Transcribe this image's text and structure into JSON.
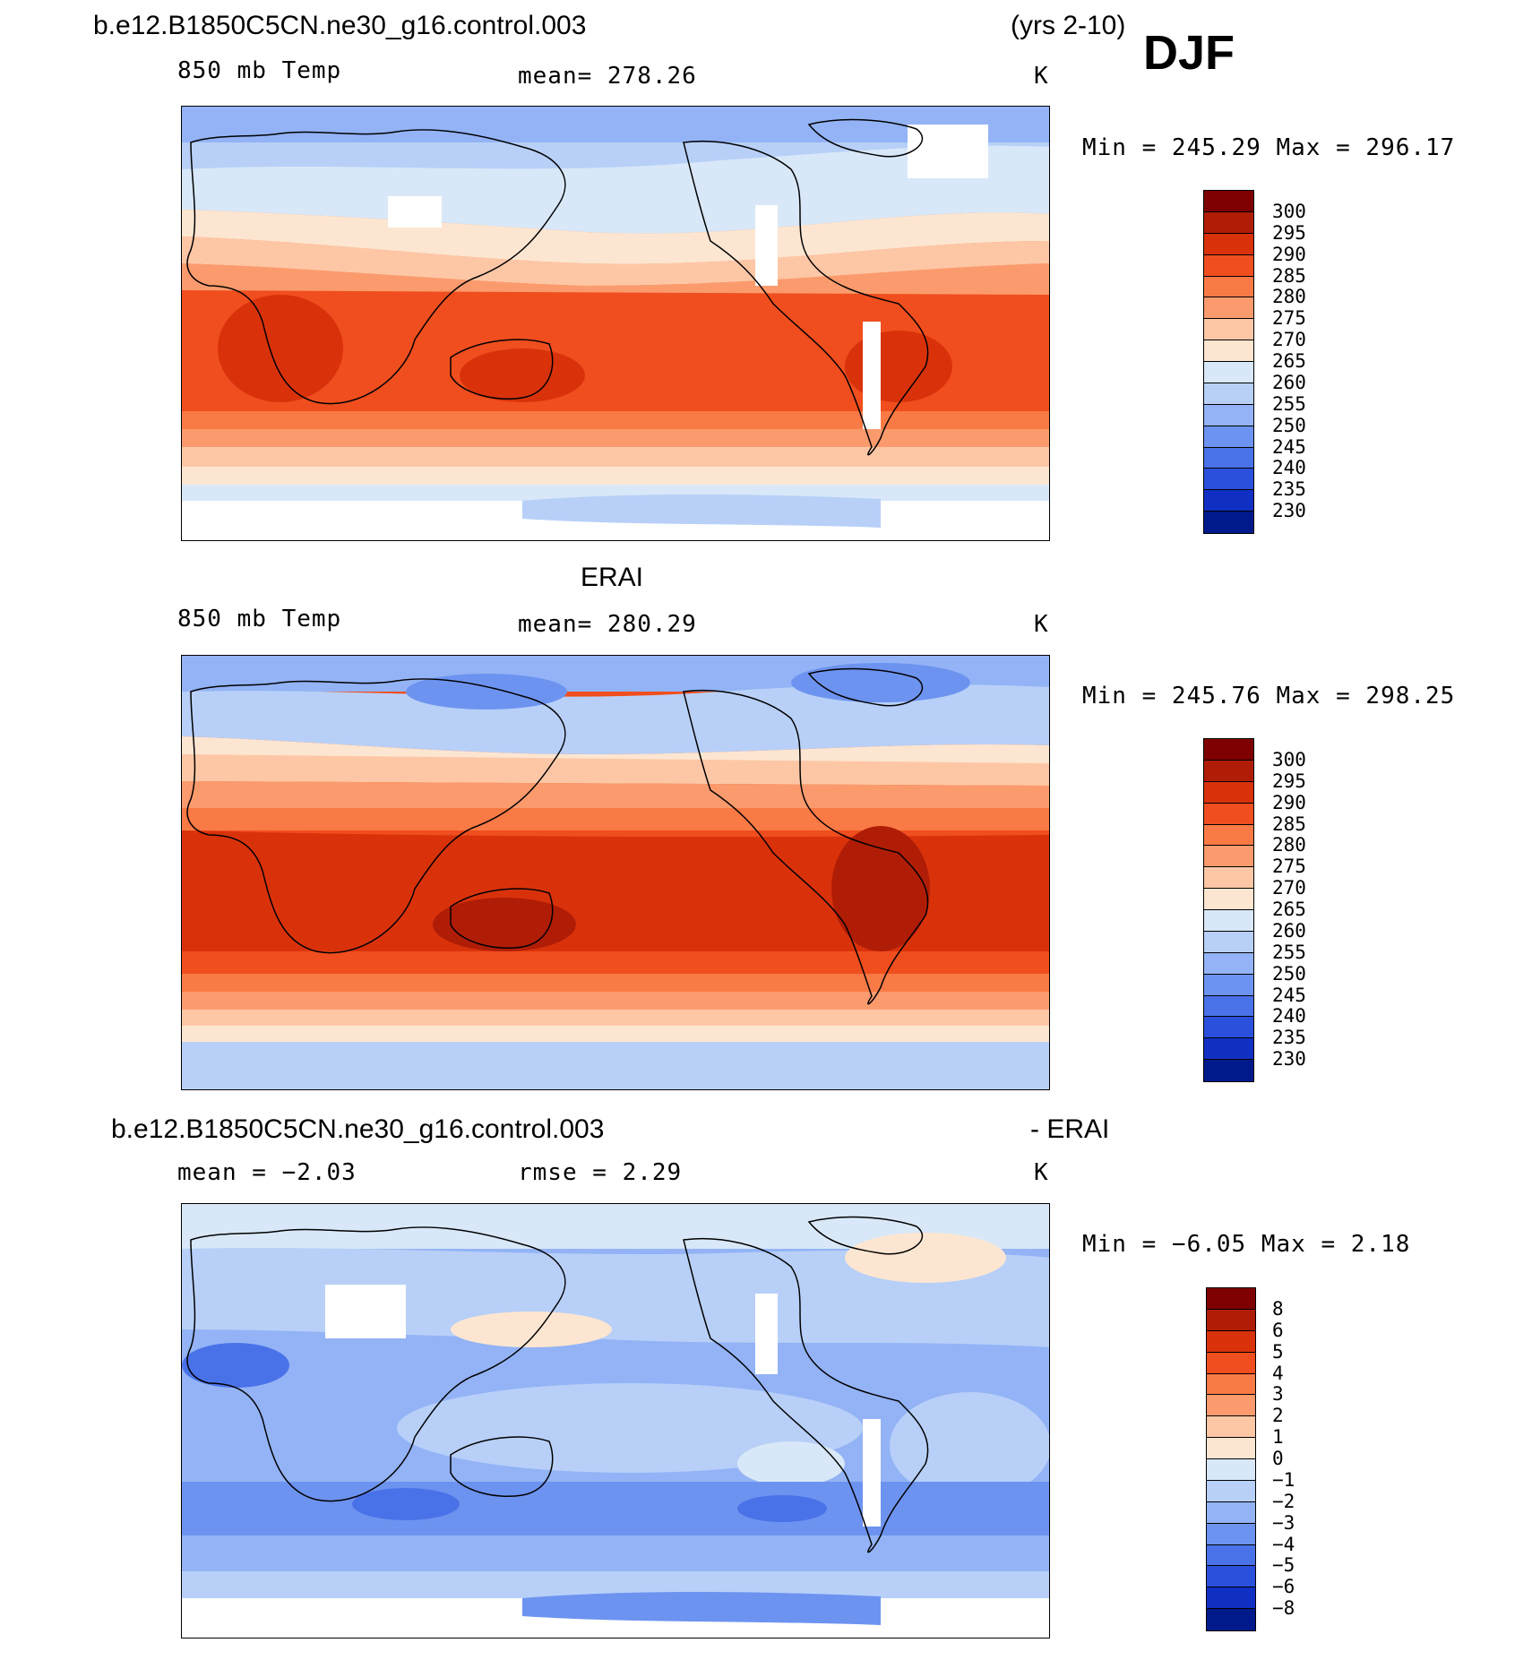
{
  "header": {
    "case_name": "b.e12.B1850C5CN.ne30_g16.control.003",
    "years": "(yrs 2-10)",
    "season": "DJF"
  },
  "panels": [
    {
      "title": "",
      "variable": "850 mb Temp",
      "stat": "mean= 278.26",
      "units": "K",
      "minmax": "Min = 245.29 Max = 296.17",
      "scale_labels": [
        "300",
        "295",
        "290",
        "285",
        "280",
        "275",
        "270",
        "265",
        "260",
        "255",
        "250",
        "245",
        "240",
        "235",
        "230"
      ]
    },
    {
      "title": "ERAI",
      "variable": "850 mb Temp",
      "stat": "mean= 280.29",
      "units": "K",
      "minmax": "Min = 245.76 Max = 298.25",
      "scale_labels": [
        "300",
        "295",
        "290",
        "285",
        "280",
        "275",
        "270",
        "265",
        "260",
        "255",
        "250",
        "245",
        "240",
        "235",
        "230"
      ]
    },
    {
      "title_left": "b.e12.B1850C5CN.ne30_g16.control.003",
      "title_right": "- ERAI",
      "mean": "mean =   −2.03",
      "rmse": "rmse =    2.29",
      "units": "K",
      "minmax": "Min =   −6.05 Max =    2.18",
      "scale_labels": [
        "8",
        "6",
        "5",
        "4",
        "3",
        "2",
        "1",
        "0",
        "−1",
        "−2",
        "−3",
        "−4",
        "−5",
        "−6",
        "−8"
      ]
    }
  ],
  "colors": {
    "temp_scale": [
      "#7f0000",
      "#b01d06",
      "#d9320b",
      "#f04e1e",
      "#fa7a46",
      "#fb9b6d",
      "#fdc7a6",
      "#fde6d1",
      "#d8e8f8",
      "#b8d0f8",
      "#93b3f6",
      "#6d93f0",
      "#4a72e8",
      "#2a50dc",
      "#1030c4",
      "#001a8c"
    ],
    "diff_scale": [
      "#7f0000",
      "#b01d06",
      "#d9320b",
      "#f04e1e",
      "#fa7a46",
      "#fb9b6d",
      "#fdc7a6",
      "#fde6d1",
      "#d8e8f8",
      "#b8d0f8",
      "#93b3f6",
      "#6d93f0",
      "#4a72e8",
      "#2a50dc",
      "#1030c4",
      "#001a8c"
    ]
  }
}
